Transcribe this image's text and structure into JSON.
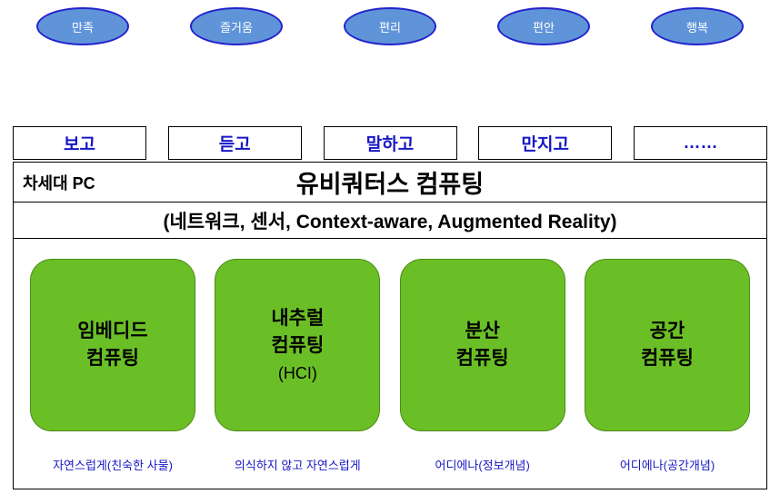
{
  "colors": {
    "ellipse_fill": "#5f94d9",
    "ellipse_stroke": "#2323cc",
    "ellipse_text": "#ffffff",
    "sense_text": "#1616c4",
    "computing_fill": "#6bbf26",
    "computing_stroke": "#4a8a17",
    "computing_text": "#000000",
    "caption_text": "#1616c4",
    "border": "#000000",
    "background": "#ffffff"
  },
  "style": {
    "ellipse_width": 102,
    "ellipse_height": 42,
    "ellipse_stroke_width": 2,
    "ellipse_fontsize": 13,
    "sense_width": 147,
    "sense_height": 37,
    "sense_fontsize": 19,
    "title_left_fontsize": 18,
    "title_center_fontsize": 27,
    "subtitle_fontsize": 21,
    "computing_width": 182,
    "computing_height": 190,
    "computing_radius": 24,
    "computing_fontsize": 21,
    "computing_sub_fontsize": 18,
    "caption_fontsize": 13
  },
  "ellipses": [
    {
      "label": "만족"
    },
    {
      "label": "즐거움"
    },
    {
      "label": "편리"
    },
    {
      "label": "편안"
    },
    {
      "label": "행복"
    }
  ],
  "senses": [
    {
      "label": "보고"
    },
    {
      "label": "듣고"
    },
    {
      "label": "말하고"
    },
    {
      "label": "만지고"
    },
    {
      "label": "……"
    }
  ],
  "title": {
    "left": "차세대 PC",
    "center": "유비쿼터스 컴퓨팅"
  },
  "subtitle": "(네트워크, 센서, Context-aware, Augmented Reality)",
  "computing": [
    {
      "line1": "임베디드",
      "line2": "컴퓨팅",
      "line3": "",
      "caption": "자연스럽게(친숙한 사물)"
    },
    {
      "line1": "내추럴",
      "line2": "컴퓨팅",
      "line3": "(HCI)",
      "caption": "의식하지 않고 자연스럽게"
    },
    {
      "line1": "분산",
      "line2": "컴퓨팅",
      "line3": "",
      "caption": "어디에나(정보개념)"
    },
    {
      "line1": "공간",
      "line2": "컴퓨팅",
      "line3": "",
      "caption": "어디에나(공간개념)"
    }
  ]
}
